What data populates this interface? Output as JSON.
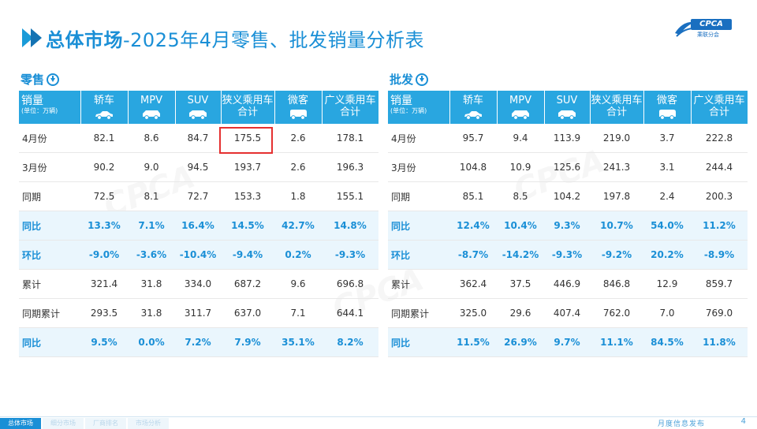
{
  "header": {
    "title_bold": "总体市场",
    "title_rest": "-2025年4月零售、批发销量分析表",
    "logo_text": "CPCA",
    "logo_sub": "乘联分会"
  },
  "table_header": {
    "corner_label": "销量",
    "corner_unit": "(单位：万辆)",
    "columns": [
      {
        "label_1": "轿车",
        "label_2": "",
        "icon": "sedan-icon"
      },
      {
        "label_1": "MPV",
        "label_2": "",
        "icon": "mpv-icon"
      },
      {
        "label_1": "SUV",
        "label_2": "",
        "icon": "suv-icon"
      },
      {
        "label_1": "狭义乘用车",
        "label_2": "合计",
        "icon": ""
      },
      {
        "label_1": "微客",
        "label_2": "",
        "icon": "minivan-icon"
      },
      {
        "label_1": "广义乘用车",
        "label_2": "合计",
        "icon": ""
      }
    ]
  },
  "retail": {
    "label": "零售",
    "rows": [
      {
        "label": "4月份",
        "values": [
          "82.1",
          "8.6",
          "84.7",
          "175.5",
          "2.6",
          "178.1"
        ]
      },
      {
        "label": "3月份",
        "values": [
          "90.2",
          "9.0",
          "94.5",
          "193.7",
          "2.6",
          "196.3"
        ]
      },
      {
        "label": "同期",
        "values": [
          "72.5",
          "8.1",
          "72.7",
          "153.3",
          "1.8",
          "155.1"
        ]
      },
      {
        "label": "同比",
        "values": [
          "13.3%",
          "7.1%",
          "16.4%",
          "14.5%",
          "42.7%",
          "14.8%"
        ]
      },
      {
        "label": "环比",
        "values": [
          "-9.0%",
          "-3.6%",
          "-10.4%",
          "-9.4%",
          "0.2%",
          "-9.3%"
        ]
      },
      {
        "label": "累计",
        "values": [
          "321.4",
          "31.8",
          "334.0",
          "687.2",
          "9.6",
          "696.8"
        ]
      },
      {
        "label": "同期累计",
        "values": [
          "293.5",
          "31.8",
          "311.7",
          "637.0",
          "7.1",
          "644.1"
        ]
      },
      {
        "label": "同比",
        "values": [
          "9.5%",
          "0.0%",
          "7.2%",
          "7.9%",
          "35.1%",
          "8.2%"
        ]
      }
    ]
  },
  "wholesale": {
    "label": "批发",
    "rows": [
      {
        "label": "4月份",
        "values": [
          "95.7",
          "9.4",
          "113.9",
          "219.0",
          "3.7",
          "222.8"
        ]
      },
      {
        "label": "3月份",
        "values": [
          "104.8",
          "10.9",
          "125.6",
          "241.3",
          "3.1",
          "244.4"
        ]
      },
      {
        "label": "同期",
        "values": [
          "85.1",
          "8.5",
          "104.2",
          "197.8",
          "2.4",
          "200.3"
        ]
      },
      {
        "label": "同比",
        "values": [
          "12.4%",
          "10.4%",
          "9.3%",
          "10.7%",
          "54.0%",
          "11.2%"
        ]
      },
      {
        "label": "环比",
        "values": [
          "-8.7%",
          "-14.2%",
          "-9.3%",
          "-9.2%",
          "20.2%",
          "-8.9%"
        ]
      },
      {
        "label": "累计",
        "values": [
          "362.4",
          "37.5",
          "446.9",
          "846.8",
          "12.9",
          "859.7"
        ]
      },
      {
        "label": "同期累计",
        "values": [
          "325.0",
          "29.6",
          "407.4",
          "762.0",
          "7.0",
          "769.0"
        ]
      },
      {
        "label": "同比",
        "values": [
          "11.5%",
          "26.9%",
          "9.7%",
          "11.1%",
          "84.5%",
          "11.8%"
        ]
      }
    ]
  },
  "footer": {
    "tabs": [
      "总体市场",
      "细分市场",
      "厂商排名",
      "市场分析"
    ],
    "publisher": "月度信息发布",
    "page": "4"
  },
  "colors": {
    "accent": "#1a8fd6",
    "header_bg": "#29a6e0",
    "pct_row_bg": "#eaf6fd",
    "highlight": "#e53030"
  }
}
